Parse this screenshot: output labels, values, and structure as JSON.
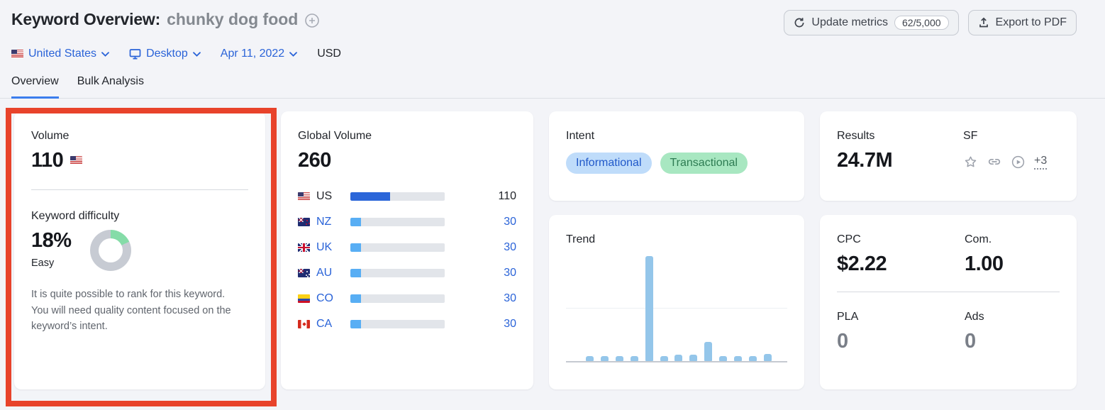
{
  "header": {
    "title": "Keyword Overview:",
    "keyword": "chunky dog food",
    "update_metrics_label": "Update metrics",
    "update_metrics_quota": "62/5,000",
    "export_label": "Export to PDF"
  },
  "filters": {
    "location": "United States",
    "device": "Desktop",
    "date": "Apr 11, 2022",
    "currency": "USD"
  },
  "tabs": [
    {
      "label": "Overview",
      "active": true
    },
    {
      "label": "Bulk Analysis",
      "active": false
    }
  ],
  "cards": {
    "volume": {
      "label": "Volume",
      "value": "110",
      "country_flag": "us"
    },
    "difficulty": {
      "label": "Keyword difficulty",
      "value": "18%",
      "percent": 18,
      "level": "Easy",
      "description": "It is quite possible to rank for this keyword. You will need quality content focused on the keyword’s intent."
    },
    "global_volume": {
      "label": "Global Volume",
      "value": "260",
      "rows": [
        {
          "country": "US",
          "flag": "us",
          "value": "110",
          "share": 42.3,
          "primary": true
        },
        {
          "country": "NZ",
          "flag": "nz",
          "value": "30",
          "share": 11.5,
          "primary": false
        },
        {
          "country": "UK",
          "flag": "uk",
          "value": "30",
          "share": 11.5,
          "primary": false
        },
        {
          "country": "AU",
          "flag": "au",
          "value": "30",
          "share": 11.5,
          "primary": false
        },
        {
          "country": "CO",
          "flag": "co",
          "value": "30",
          "share": 11.5,
          "primary": false
        },
        {
          "country": "CA",
          "flag": "ca",
          "value": "30",
          "share": 11.5,
          "primary": false
        }
      ]
    },
    "intent": {
      "label": "Intent",
      "badges": [
        {
          "label": "Informational",
          "type": "informational"
        },
        {
          "label": "Transactional",
          "type": "transactional"
        }
      ]
    },
    "results": {
      "label": "Results",
      "value": "24.7M"
    },
    "serp_features": {
      "label": "SF",
      "icons": [
        "star-icon",
        "link-icon",
        "video-icon"
      ],
      "more_label": "+3"
    },
    "trend": {
      "label": "Trend"
    },
    "cpc": {
      "label": "CPC",
      "value": "$2.22"
    },
    "competition": {
      "label": "Com.",
      "value": "1.00"
    },
    "pla": {
      "label": "PLA",
      "value": "0"
    },
    "ads": {
      "label": "Ads",
      "value": "0"
    }
  },
  "chart_data": {
    "type": "bar",
    "title": "Trend",
    "xlabel": "",
    "ylabel": "",
    "x": [
      1,
      2,
      3,
      4,
      5,
      6,
      7,
      8,
      9,
      10,
      11,
      12,
      13
    ],
    "x_tick_labels": [],
    "values_normalized": [
      0.05,
      0.05,
      0.05,
      0.05,
      1.0,
      0.05,
      0.06,
      0.06,
      0.18,
      0.05,
      0.05,
      0.05,
      0.07
    ],
    "ylim": [
      0,
      1
    ],
    "grid": "one horizontal gridline at 50%",
    "legend": "none"
  },
  "icons": {
    "refresh-icon": "⟳",
    "export-icon": "↑",
    "plus-circle-icon": "⊕",
    "chevron-down-icon": "⌄",
    "desktop-icon": "monitor shape",
    "star-icon": "☆",
    "link-icon": "chain shape",
    "video-icon": "▶ in circle"
  },
  "colors": {
    "accent_blue": "#2A63D8",
    "tab_underline": "#3B7DED",
    "highlight_red": "#E8432B",
    "kd_green": "#85DCA8",
    "donut_gray": "#C7CBD3",
    "bar_primary": "#2B66D9",
    "bar_secondary": "#58AEF4",
    "bar_track": "#E2E5EA",
    "trend_bar": "#94C6EA",
    "intent_informational_bg": "#BFDCFA",
    "intent_informational_text": "#2058C9",
    "intent_transactional_bg": "#A8E7C1",
    "intent_transactional_text": "#2E7C53"
  }
}
